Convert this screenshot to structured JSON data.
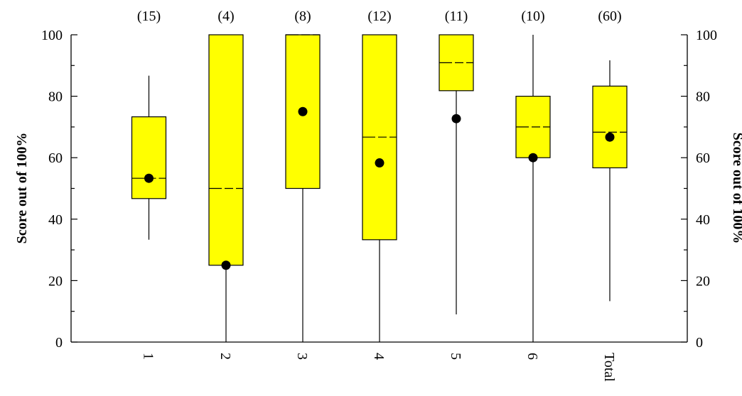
{
  "chart_data": {
    "type": "boxplot",
    "categories": [
      "1",
      "2",
      "3",
      "4",
      "5",
      "6",
      "Total"
    ],
    "counts": [
      "(15)",
      "(4)",
      "(8)",
      "(12)",
      "(11)",
      "(10)",
      "(60)"
    ],
    "boxes": [
      {
        "category": "1",
        "whisker_low": 33.3,
        "q1": 46.7,
        "median": 53.3,
        "q3": 73.3,
        "whisker_high": 86.7,
        "mean": 53.3
      },
      {
        "category": "2",
        "whisker_low": 0,
        "q1": 25,
        "median": 50,
        "q3": 100,
        "whisker_high": 100,
        "mean": 25
      },
      {
        "category": "3",
        "whisker_low": 0,
        "q1": 50,
        "median": 100,
        "q3": 100,
        "whisker_high": 100,
        "mean": 75
      },
      {
        "category": "4",
        "whisker_low": 0,
        "q1": 33.3,
        "median": 66.7,
        "q3": 100,
        "whisker_high": 100,
        "mean": 58.3
      },
      {
        "category": "5",
        "whisker_low": 9,
        "q1": 81.8,
        "median": 90.9,
        "q3": 100,
        "whisker_high": 100,
        "mean": 72.7
      },
      {
        "category": "6",
        "whisker_low": 0,
        "q1": 60,
        "median": 70,
        "q3": 80,
        "whisker_high": 100,
        "mean": 60
      },
      {
        "category": "Total",
        "whisker_low": 13.3,
        "q1": 56.7,
        "median": 68.3,
        "q3": 83.3,
        "whisker_high": 91.7,
        "mean": 66.7
      }
    ],
    "ylabel": "Score out of 100%",
    "ylabel_right": "Score out of 100%",
    "ylim": [
      0,
      100
    ],
    "yticks": [
      "0",
      "20",
      "40",
      "60",
      "80",
      "100"
    ],
    "grid": false,
    "box_color": "#ffff00",
    "mean_marker_color": "#000000"
  }
}
